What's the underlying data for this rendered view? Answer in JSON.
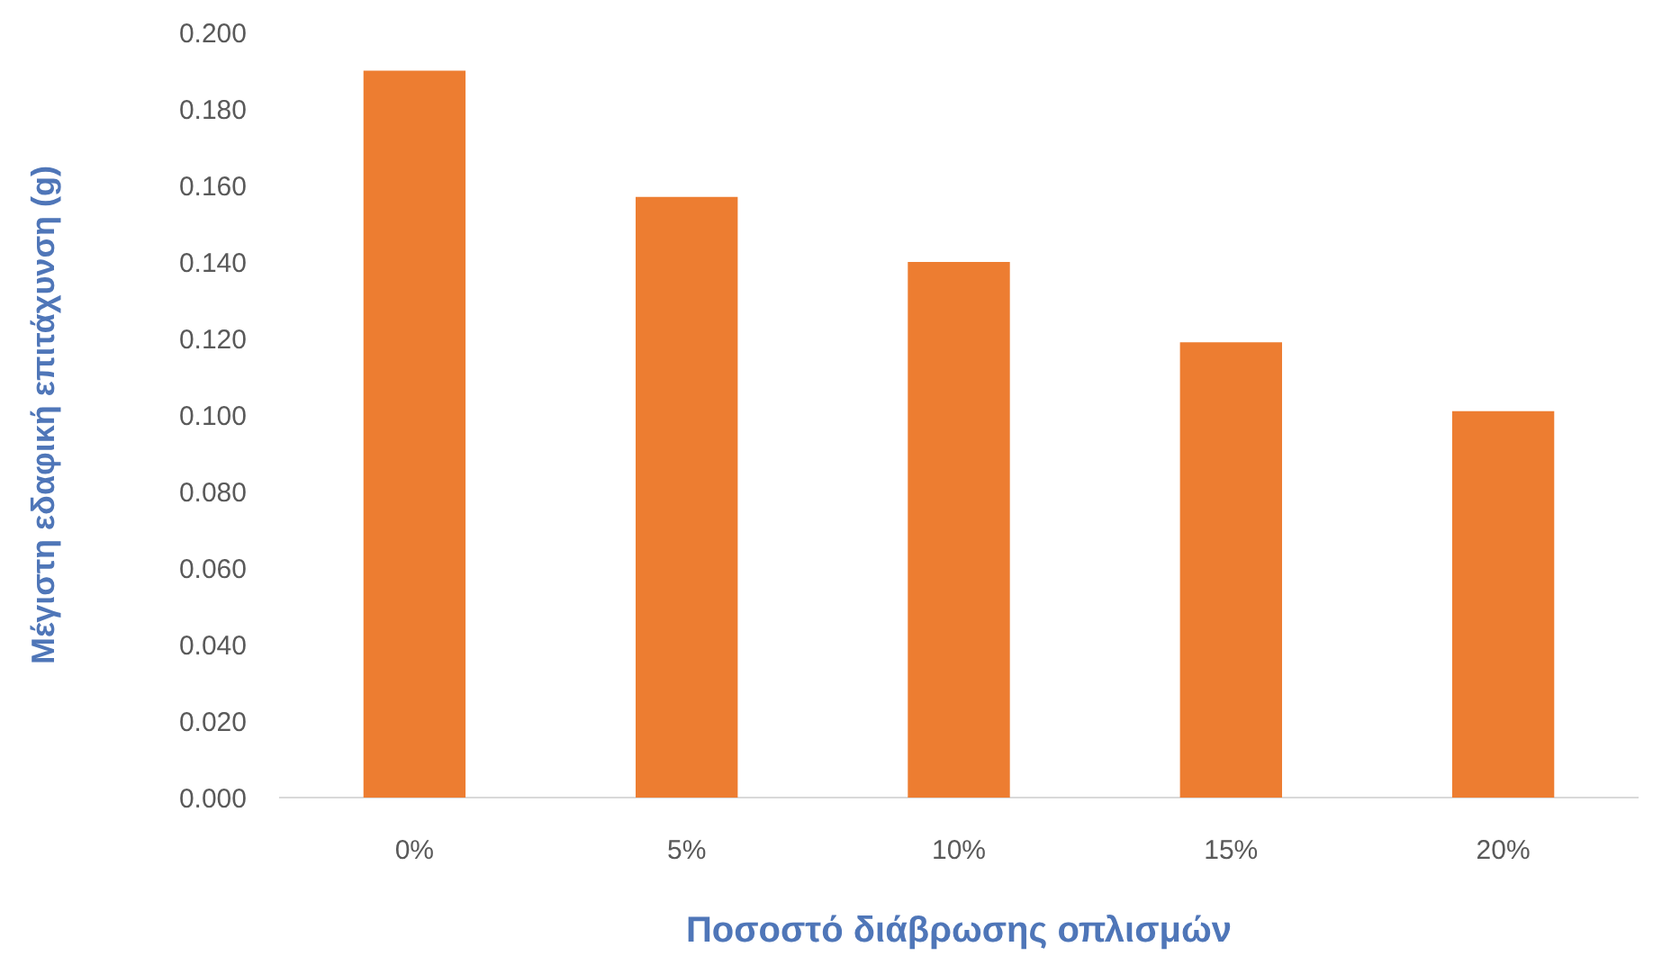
{
  "chart_data": {
    "type": "bar",
    "xlabel": "Ποσοστό διάβρωσης οπλισμών",
    "ylabel": "Μέγιστη εδαφική επιτάχυνση (g)",
    "categories": [
      "0%",
      "5%",
      "10%",
      "15%",
      "20%"
    ],
    "values": [
      0.19,
      0.157,
      0.14,
      0.119,
      0.101
    ],
    "color": "#ed7d31",
    "ylim": [
      0,
      0.2
    ],
    "yticks": [
      {
        "value": 0,
        "label": "0.000"
      },
      {
        "value": 0.02,
        "label": "0.020"
      },
      {
        "value": 0.04,
        "label": "0.040"
      },
      {
        "value": 0.06,
        "label": "0.060"
      },
      {
        "value": 0.08,
        "label": "0.080"
      },
      {
        "value": 0.1,
        "label": "0.100"
      },
      {
        "value": 0.12,
        "label": "0.120"
      },
      {
        "value": 0.14,
        "label": "0.140"
      },
      {
        "value": 0.16,
        "label": "0.160"
      },
      {
        "value": 0.18,
        "label": "0.180"
      },
      {
        "value": 0.2,
        "label": "0.200"
      }
    ]
  }
}
